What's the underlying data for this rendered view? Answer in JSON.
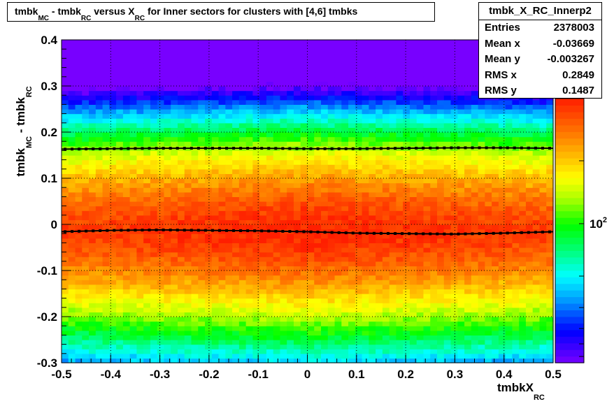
{
  "title": {
    "p1": "tmbk",
    "s1": "MC",
    "p2": " - tmbk",
    "s2": "RC",
    "p3": " versus X",
    "s3": "RC",
    "p4": " for Inner sectors for clusters with [4,6] tmbks"
  },
  "stats": {
    "name": "tmbk_X_RC_Innerp2",
    "rows": [
      {
        "label": "Entries",
        "value": "2378003"
      },
      {
        "label": "Mean x",
        "value": "-0.03669"
      },
      {
        "label": "Mean y",
        "value": "-0.003267"
      },
      {
        "label": "RMS x",
        "value": "0.2849"
      },
      {
        "label": "RMS y",
        "value": "0.1487"
      }
    ]
  },
  "chart_data": {
    "type": "heatmap",
    "xlabel": "tmbkX",
    "xlabel_sub": "RC",
    "ylabel": "tmbk",
    "ylabel_sub1": "MC",
    "ylabel_mid": " - tmbk",
    "ylabel_sub2": "RC",
    "xlim": [
      -0.5,
      0.5
    ],
    "ylim": [
      -0.3,
      0.4
    ],
    "x_ticks": [
      "-0.5",
      "-0.4",
      "-0.3",
      "-0.2",
      "-0.1",
      "0",
      "0.1",
      "0.2",
      "0.3",
      "0.4",
      "0.5"
    ],
    "y_ticks": [
      "-0.3",
      "-0.2",
      "-0.1",
      "0",
      "0.1",
      "0.2",
      "0.3",
      "0.4"
    ],
    "palette_label_base": "10",
    "palette_label_exp": "2",
    "grid": true,
    "profile_lines": [
      {
        "x": [
          -0.5,
          -0.4,
          -0.3,
          -0.2,
          -0.1,
          0.0,
          0.1,
          0.2,
          0.3,
          0.4,
          0.5
        ],
        "y": [
          -0.016,
          -0.013,
          -0.012,
          -0.013,
          -0.014,
          -0.016,
          -0.019,
          -0.02,
          -0.021,
          -0.019,
          -0.016
        ]
      },
      {
        "x": [
          -0.5,
          -0.4,
          -0.3,
          -0.2,
          -0.1,
          0.0,
          0.1,
          0.2,
          0.3,
          0.4,
          0.5
        ],
        "y": [
          0.163,
          0.164,
          0.165,
          0.165,
          0.165,
          0.164,
          0.164,
          0.165,
          0.166,
          0.166,
          0.165
        ]
      }
    ]
  }
}
